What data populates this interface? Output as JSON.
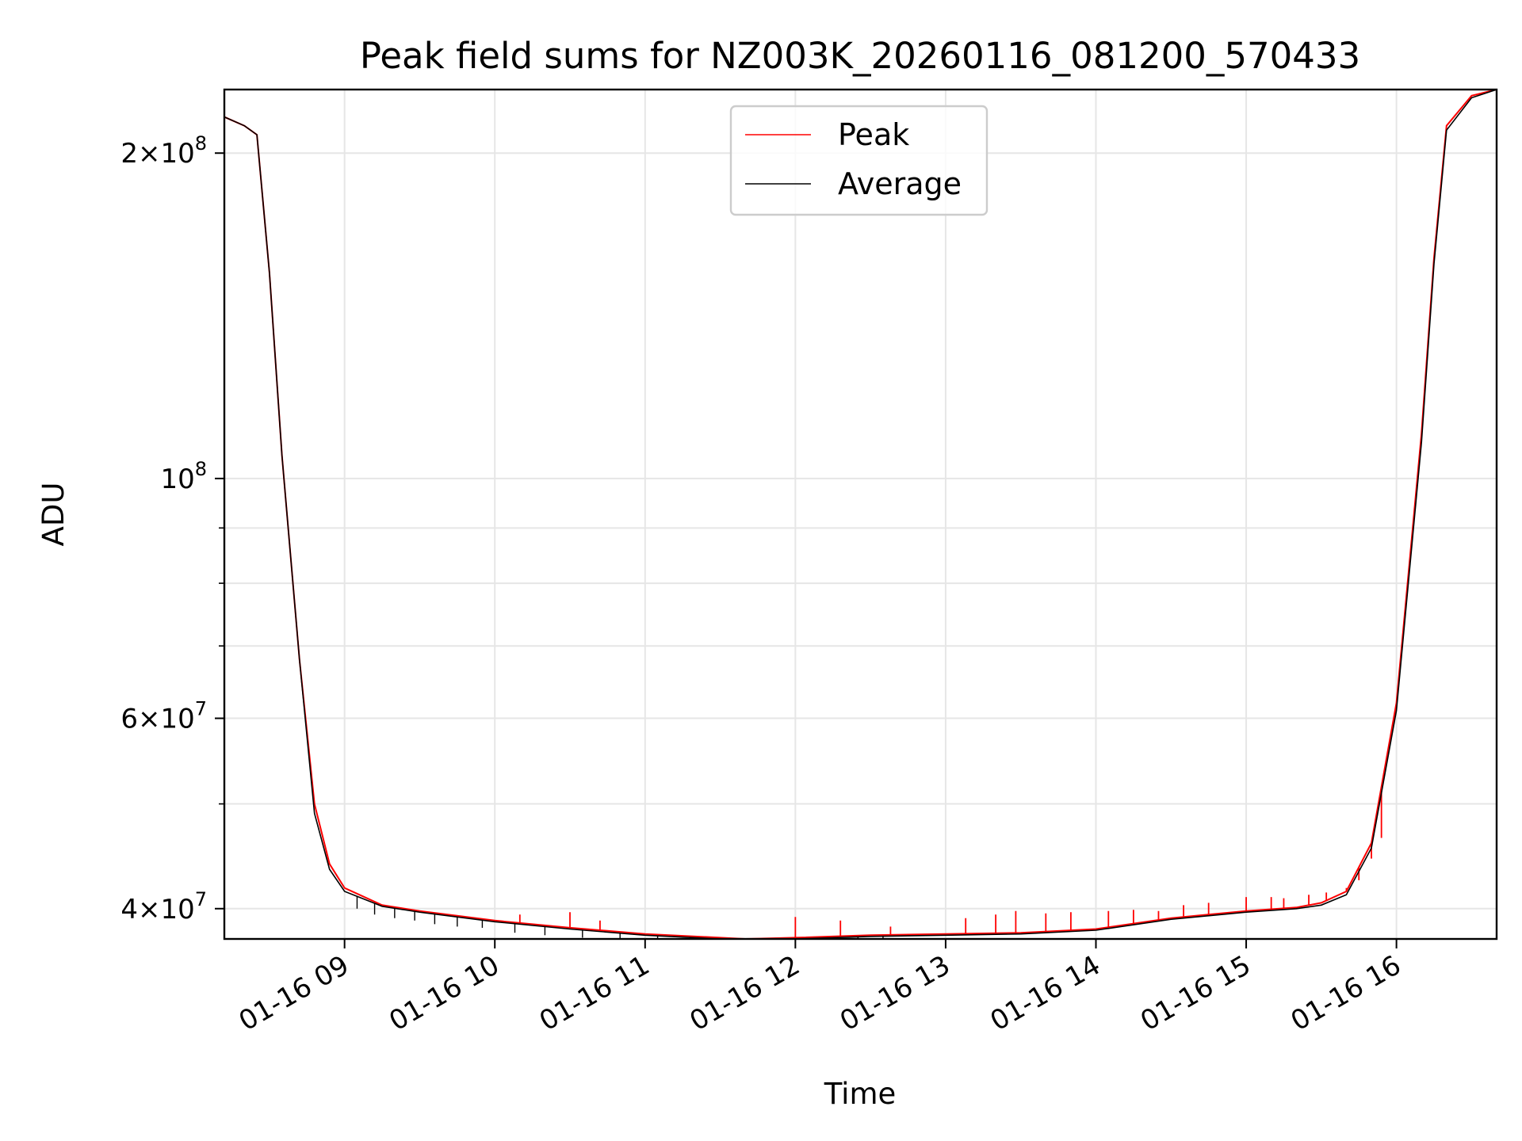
{
  "chart_data": {
    "type": "line",
    "title": "Peak field sums for NZ003K_20260116_081200_570433",
    "xlabel": "Time",
    "ylabel": "ADU",
    "yscale": "log",
    "xlim": [
      "01-16 08:12",
      "01-16 16:40"
    ],
    "ylim": [
      37500000,
      229000000
    ],
    "x_ticks": [
      "01-16 09",
      "01-16 10",
      "01-16 11",
      "01-16 12",
      "01-16 13",
      "01-16 14",
      "01-16 15",
      "01-16 16"
    ],
    "y_major_ticks": [
      {
        "value": 40000000,
        "mant": "4",
        "exp": "7"
      },
      {
        "value": 60000000,
        "mant": "6",
        "exp": "7"
      },
      {
        "value": 100000000,
        "mant": "",
        "exp": "8"
      },
      {
        "value": 200000000,
        "mant": "2",
        "exp": "8"
      }
    ],
    "y_minor_ticks": [
      50000000,
      70000000,
      80000000,
      90000000
    ],
    "grid": true,
    "legend_position": "top-center",
    "series": [
      {
        "name": "Peak",
        "color": "#ff0000",
        "x": [
          "01-16 08:12",
          "01-16 08:20",
          "01-16 08:25",
          "01-16 08:30",
          "01-16 08:35",
          "01-16 08:42",
          "01-16 08:48",
          "01-16 08:54",
          "01-16 09:00",
          "01-16 09:15",
          "01-16 09:30",
          "01-16 10:00",
          "01-16 10:30",
          "01-16 11:00",
          "01-16 11:30",
          "01-16 11:40",
          "01-16 12:00",
          "01-16 12:30",
          "01-16 13:00",
          "01-16 13:30",
          "01-16 14:00",
          "01-16 14:30",
          "01-16 15:00",
          "01-16 15:20",
          "01-16 15:30",
          "01-16 15:40",
          "01-16 15:50",
          "01-16 16:00",
          "01-16 16:10",
          "01-16 16:15",
          "01-16 16:20",
          "01-16 16:30",
          "01-16 16:40"
        ],
        "y": [
          216000000,
          212000000,
          208000000,
          155000000,
          105000000,
          68000000,
          50000000,
          44000000,
          41800000,
          40300000,
          39800000,
          39000000,
          38400000,
          37900000,
          37600000,
          37500000,
          37600000,
          37800000,
          37900000,
          38000000,
          38300000,
          39200000,
          39800000,
          40100000,
          40500000,
          41500000,
          46000000,
          62000000,
          110000000,
          160000000,
          212000000,
          226000000,
          229000000
        ],
        "spikes": [
          {
            "x": "01-16 10:10",
            "y": 39500000
          },
          {
            "x": "01-16 10:30",
            "y": 39700000
          },
          {
            "x": "01-16 10:42",
            "y": 39000000
          },
          {
            "x": "01-16 12:00",
            "y": 39300000
          },
          {
            "x": "01-16 12:18",
            "y": 39000000
          },
          {
            "x": "01-16 12:38",
            "y": 38500000
          },
          {
            "x": "01-16 13:08",
            "y": 39200000
          },
          {
            "x": "01-16 13:20",
            "y": 39500000
          },
          {
            "x": "01-16 13:28",
            "y": 39800000
          },
          {
            "x": "01-16 13:40",
            "y": 39600000
          },
          {
            "x": "01-16 13:50",
            "y": 39700000
          },
          {
            "x": "01-16 14:05",
            "y": 39800000
          },
          {
            "x": "01-16 14:15",
            "y": 39900000
          },
          {
            "x": "01-16 14:25",
            "y": 39800000
          },
          {
            "x": "01-16 14:35",
            "y": 40300000
          },
          {
            "x": "01-16 14:45",
            "y": 40500000
          },
          {
            "x": "01-16 15:00",
            "y": 41000000
          },
          {
            "x": "01-16 15:10",
            "y": 41000000
          },
          {
            "x": "01-16 15:15",
            "y": 40900000
          },
          {
            "x": "01-16 15:25",
            "y": 41200000
          },
          {
            "x": "01-16 15:32",
            "y": 41400000
          },
          {
            "x": "01-16 15:40",
            "y": 41800000
          },
          {
            "x": "01-16 15:45",
            "y": 42500000
          },
          {
            "x": "01-16 15:50",
            "y": 44500000
          },
          {
            "x": "01-16 15:54",
            "y": 46500000
          }
        ]
      },
      {
        "name": "Average",
        "color": "#000000",
        "x": [
          "01-16 08:12",
          "01-16 08:20",
          "01-16 08:25",
          "01-16 08:30",
          "01-16 08:35",
          "01-16 08:42",
          "01-16 08:48",
          "01-16 08:54",
          "01-16 09:00",
          "01-16 09:15",
          "01-16 09:30",
          "01-16 10:00",
          "01-16 10:30",
          "01-16 11:00",
          "01-16 11:30",
          "01-16 11:40",
          "01-16 12:00",
          "01-16 12:30",
          "01-16 13:00",
          "01-16 13:30",
          "01-16 14:00",
          "01-16 14:30",
          "01-16 15:00",
          "01-16 15:20",
          "01-16 15:30",
          "01-16 15:40",
          "01-16 15:50",
          "01-16 16:00",
          "01-16 16:10",
          "01-16 16:15",
          "01-16 16:20",
          "01-16 16:30",
          "01-16 16:40"
        ],
        "y": [
          216000000,
          212000000,
          208000000,
          155000000,
          105000000,
          68000000,
          49000000,
          43500000,
          41500000,
          40200000,
          39700000,
          38900000,
          38300000,
          37800000,
          37500000,
          37400000,
          37500000,
          37700000,
          37800000,
          37900000,
          38200000,
          39100000,
          39700000,
          40000000,
          40300000,
          41200000,
          45500000,
          61000000,
          108000000,
          158000000,
          210000000,
          225000000,
          229000000
        ],
        "dips": [
          {
            "x": "01-16 09:05",
            "y": 40000000
          },
          {
            "x": "01-16 09:12",
            "y": 39500000
          },
          {
            "x": "01-16 09:20",
            "y": 39200000
          },
          {
            "x": "01-16 09:28",
            "y": 39000000
          },
          {
            "x": "01-16 09:36",
            "y": 38700000
          },
          {
            "x": "01-16 09:45",
            "y": 38500000
          },
          {
            "x": "01-16 09:55",
            "y": 38400000
          },
          {
            "x": "01-16 10:08",
            "y": 38000000
          },
          {
            "x": "01-16 10:20",
            "y": 37800000
          },
          {
            "x": "01-16 10:35",
            "y": 37600000
          },
          {
            "x": "01-16 10:50",
            "y": 37300000
          },
          {
            "x": "01-16 11:05",
            "y": 37000000
          },
          {
            "x": "01-16 11:18",
            "y": 37000000
          },
          {
            "x": "01-16 11:35",
            "y": 36900000
          },
          {
            "x": "01-16 11:55",
            "y": 37000000
          },
          {
            "x": "01-16 12:25",
            "y": 37200000
          },
          {
            "x": "01-16 12:35",
            "y": 37300000
          }
        ]
      }
    ]
  }
}
